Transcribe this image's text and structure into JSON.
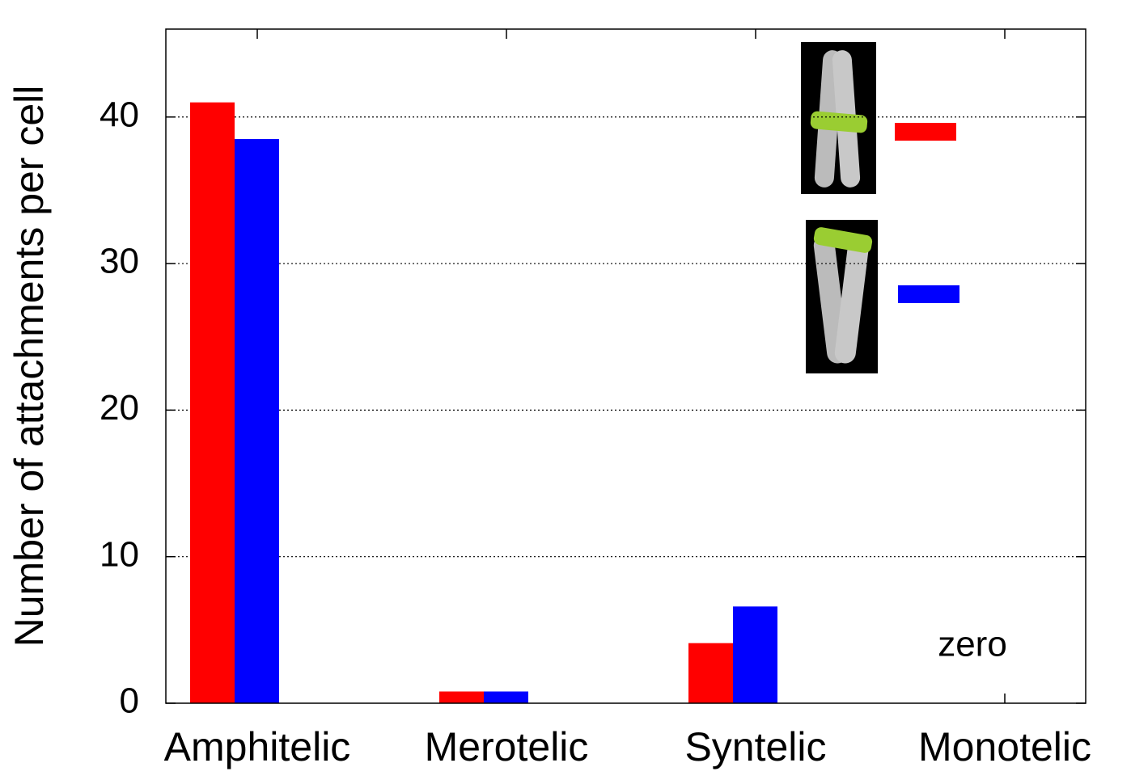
{
  "chart_data": {
    "type": "bar",
    "y_label": "Number of attachments per cell",
    "categories": [
      "Amphitelic",
      "Merotelic",
      "Syntelic",
      "Monotelic"
    ],
    "series": [
      {
        "color": "#ff0000",
        "values": [
          41.0,
          0.8,
          4.1,
          0
        ]
      },
      {
        "color": "#0000ff",
        "values": [
          38.5,
          0.8,
          6.6,
          0
        ]
      }
    ],
    "annotation": "zero",
    "ylim": [
      0,
      46
    ],
    "yticks": [
      0,
      10,
      20,
      30,
      40
    ],
    "grid": true
  }
}
